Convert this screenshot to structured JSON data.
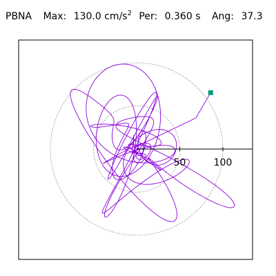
{
  "header": {
    "station": "PBNA",
    "max_label": "Max:",
    "max_value": "130.0",
    "max_unit": "cm/s",
    "max_unit_exp": "2",
    "per_label": "Per:",
    "per_value": "0.360 s",
    "ang_label": "Ang:",
    "ang_value": "37.3"
  },
  "chart_data": {
    "type": "polar-hodogram",
    "radial_ticks": [
      50,
      100
    ],
    "radial_tick_labels": [
      "50",
      "100"
    ],
    "reference_rings": [
      50,
      100
    ],
    "axis_angle_deg": 0,
    "max_amplitude": 130.0,
    "peak_marker_deg": 37.3,
    "line_color": "#8b00d9",
    "marker_color": "#0c9a7a",
    "grid_style": "dotted",
    "seed": 37
  }
}
